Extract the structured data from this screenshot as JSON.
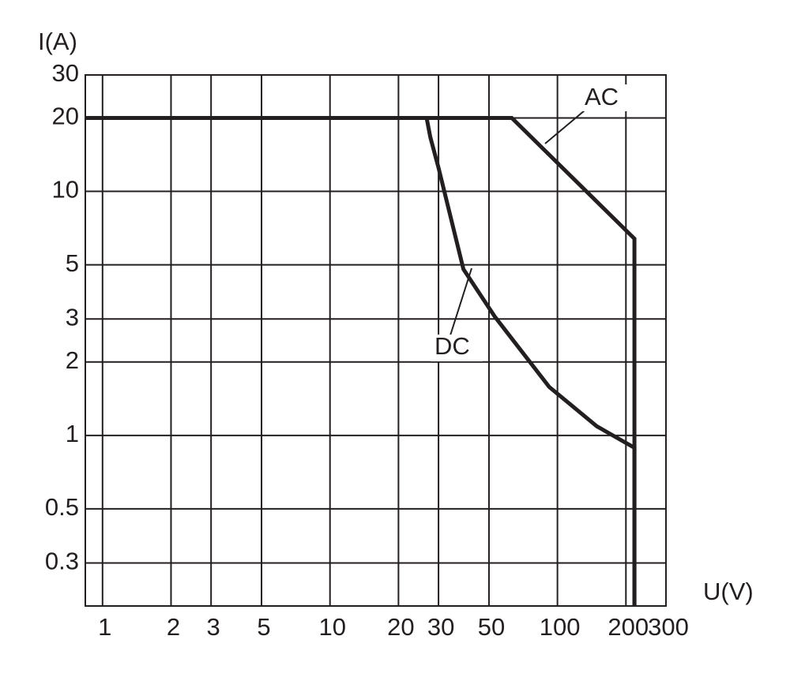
{
  "chart_data": {
    "type": "line",
    "x_label": "U(V)",
    "y_label": "I(A)",
    "xscale": "log",
    "yscale": "log",
    "grid": true,
    "xlim": [
      0.84,
      300
    ],
    "ylim": [
      0.2,
      30
    ],
    "xticks": [
      1,
      2,
      3,
      5,
      10,
      20,
      30,
      50,
      100,
      200,
      300
    ],
    "yticks": [
      0.3,
      0.5,
      1,
      2,
      3,
      5,
      10,
      20,
      30
    ],
    "series": [
      {
        "name": "AC",
        "color": "#231f20",
        "x": [
          0.84,
          63,
          218,
          218
        ],
        "values": [
          20,
          20,
          6.4,
          0.2
        ]
      },
      {
        "name": "DC",
        "color": "#231f20",
        "x": [
          0.84,
          26.6,
          27.6,
          30,
          38.6,
          53,
          92,
          149,
          218,
          218
        ],
        "values": [
          20,
          20,
          16.7,
          12.5,
          4.8,
          3.07,
          1.58,
          1.09,
          0.89,
          0.2
        ]
      }
    ]
  }
}
